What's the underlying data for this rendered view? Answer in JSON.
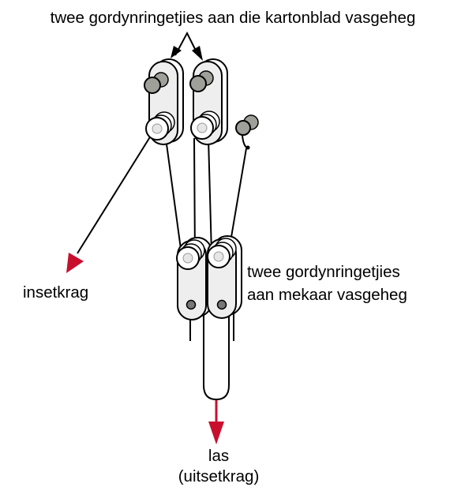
{
  "labels": {
    "top": "twee gordynringetjies aan die kartonblad vasgeheg",
    "left": "insetkrag",
    "right_line1": "twee gordynringetjies",
    "right_line2": "aan mekaar vasgeheg",
    "bottom_line1": "las",
    "bottom_line2": "(uitsetkrag)"
  },
  "colors": {
    "arrow_red": "#c8102e",
    "line": "#000000",
    "pulley_fill": "#eeeeee",
    "peg_fill": "#a0a09a",
    "wheel_fill": "#ffffff"
  },
  "icons": {
    "pulley": "curtain-ring-pulley-icon",
    "peg": "fastening-peg-icon",
    "arrow": "force-arrow-icon"
  }
}
